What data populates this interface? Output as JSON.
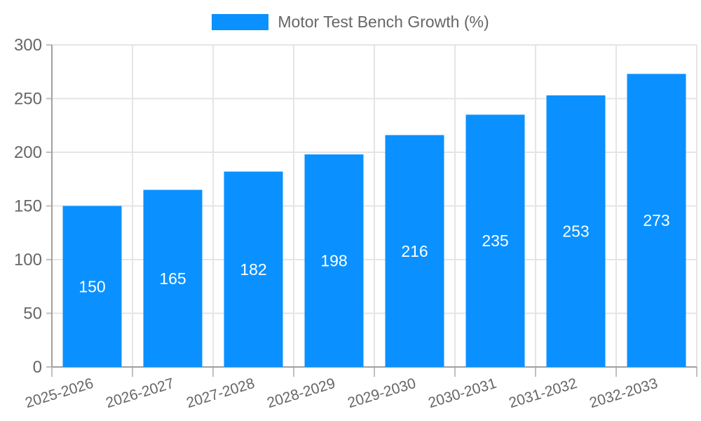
{
  "legend": {
    "label": "Motor Test Bench Growth (%)"
  },
  "chart_data": {
    "type": "bar",
    "title": "Motor Test Bench Growth (%)",
    "series_name": "Motor Test Bench Growth (%)",
    "categories": [
      "2025-2026",
      "2026-2027",
      "2027-2028",
      "2028-2029",
      "2029-2030",
      "2030-2031",
      "2031-2032",
      "2032-2033"
    ],
    "values": [
      150,
      165,
      182,
      198,
      216,
      235,
      253,
      273
    ],
    "xlabel": "",
    "ylabel": "",
    "ylim": [
      0,
      300
    ],
    "yticks": [
      0,
      50,
      100,
      150,
      200,
      250,
      300
    ],
    "grid": true,
    "legend_position": "top",
    "value_labels": "centered-inside-bars",
    "colors": {
      "bar": "#0a91ff",
      "value_label": "#ffffff",
      "grid": "#e5e5e5",
      "axis": "#a0a0a0",
      "tick": "#c0c0c0",
      "tick_label": "#666666"
    }
  }
}
